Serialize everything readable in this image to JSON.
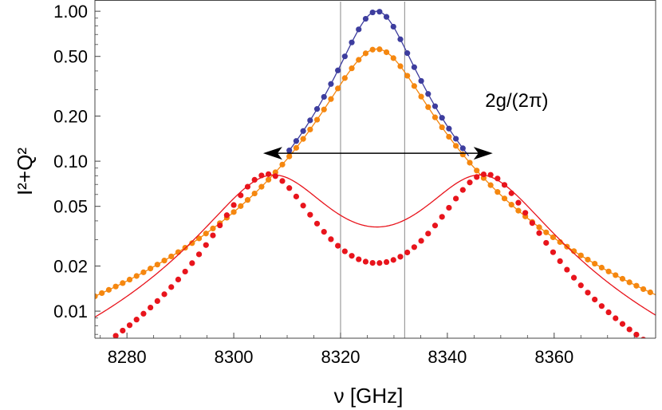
{
  "chart_data": {
    "type": "scatter",
    "title": "",
    "xlabel": "ν [GHz]",
    "ylabel": "I²+Q²",
    "y_scale": "log",
    "xlim": [
      8274,
      8379
    ],
    "ylim": [
      0.0066,
      1.16
    ],
    "x_ticks": [
      8280,
      8300,
      8320,
      8340,
      8360
    ],
    "y_ticks": [
      {
        "value": 1.0,
        "label": "1.00"
      },
      {
        "value": 0.5,
        "label": "0.50"
      },
      {
        "value": 0.2,
        "label": "0.20"
      },
      {
        "value": 0.1,
        "label": "0.10"
      },
      {
        "value": 0.05,
        "label": "0.05"
      },
      {
        "value": 0.02,
        "label": "0.02"
      },
      {
        "value": 0.01,
        "label": "0.01"
      }
    ],
    "vertical_lines": [
      8320,
      8332
    ],
    "grid": false,
    "model": {
      "center": 8326.8,
      "sample_step": 1.3,
      "sample_range": [
        8274,
        8379
      ]
    },
    "series": [
      {
        "name": "blue",
        "color": "#3d3d9e",
        "kind": "points+line",
        "shape": "lorentzian",
        "peak": 1.0,
        "hwhm": 6.0,
        "x_range": [
          8310,
          8344
        ]
      },
      {
        "name": "orange",
        "color": "#f5870f",
        "kind": "points+line",
        "shape": "lorentzian",
        "peak": 0.56,
        "hwhm": 8.0
      },
      {
        "name": "red",
        "color": "#e8141c",
        "kind": "points",
        "shape": "split-lorentzian",
        "peak": 0.082,
        "hwhm": 8.0,
        "splitting": 20.5
      },
      {
        "name": "red-fit",
        "color": "#e8141c",
        "kind": "line",
        "shape": "split-lorentzian",
        "peak": 0.081,
        "hwhm": 11.0,
        "splitting": 19.5
      }
    ],
    "annotations": [
      {
        "text": "2g/(2π)",
        "arrow_from": 8305.5,
        "arrow_to": 8348.5,
        "arrow_y": 0.113,
        "text_x": 8353,
        "text_y": 0.23
      }
    ]
  }
}
